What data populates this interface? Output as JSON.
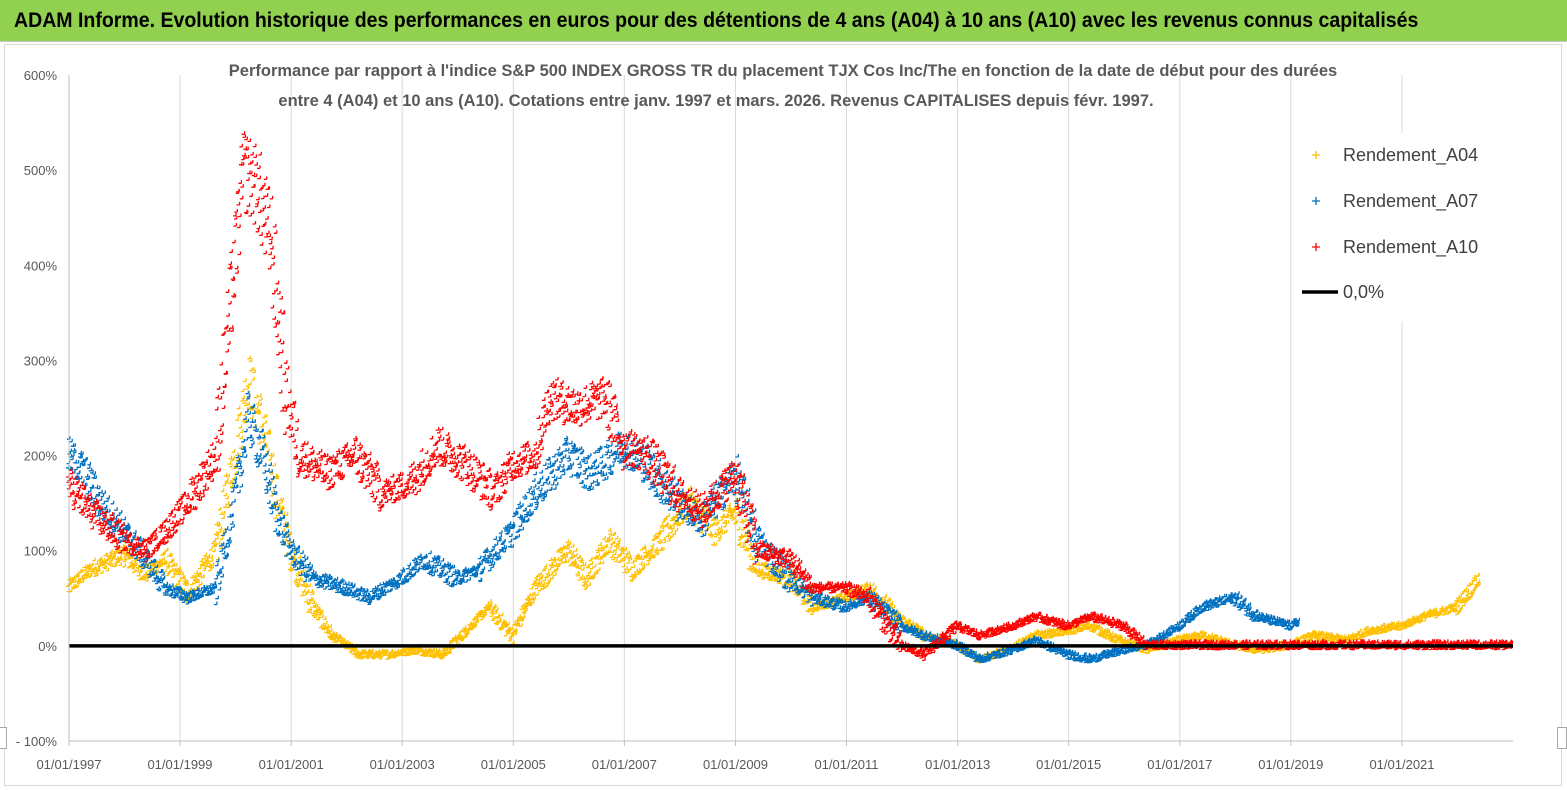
{
  "header": {
    "title": "ADAM Informe. Evolution historique des performances en euros pour des détentions de 4 ans (A04) à 10 ans (A10) avec les revenus connus capitalisés"
  },
  "chart_data": {
    "type": "scatter",
    "title_line1": "Performance par rapport à l'indice S&P 500 INDEX GROSS TR  du placement TJX Cos Inc/The en fonction de la date de début pour des durées",
    "title_line2": "entre 4 (A04) et 10 ans (A10). Cotations entre janv. 1997 et mars. 2026. Revenus CAPITALISES depuis févr. 1997.",
    "xlabel": "",
    "ylabel": "",
    "x_ticks": [
      "01/01/1997",
      "01/01/1999",
      "01/01/2001",
      "01/01/2003",
      "01/01/2005",
      "01/01/2007",
      "01/01/2009",
      "01/01/2011",
      "01/01/2013",
      "01/01/2015",
      "01/01/2017",
      "01/01/2019",
      "01/01/2021"
    ],
    "y_ticks": [
      "600%",
      "500%",
      "400%",
      "300%",
      "200%",
      "100%",
      "0%",
      "- 100%"
    ],
    "ylim": [
      -100,
      600
    ],
    "xlim": [
      "1997-01-01",
      "2023-01-01"
    ],
    "grid": "vertical",
    "legend_position": "top-right",
    "series": [
      {
        "name": "Rendement_A04",
        "color": "#ffc000",
        "marker": "plus",
        "points": [
          [
            "1997-01-01",
            60
          ],
          [
            "1997-06-01",
            80
          ],
          [
            "1998-01-01",
            95
          ],
          [
            "1998-06-01",
            75
          ],
          [
            "1998-10-01",
            90
          ],
          [
            "1999-03-01",
            55
          ],
          [
            "1999-09-01",
            100
          ],
          [
            "2000-01-01",
            200
          ],
          [
            "2000-04-01",
            280
          ],
          [
            "2000-07-01",
            230
          ],
          [
            "2000-10-01",
            160
          ],
          [
            "2001-01-01",
            100
          ],
          [
            "2001-06-01",
            40
          ],
          [
            "2001-10-01",
            10
          ],
          [
            "2002-04-01",
            -10
          ],
          [
            "2002-10-01",
            -10
          ],
          [
            "2003-04-01",
            -5
          ],
          [
            "2003-10-01",
            -10
          ],
          [
            "2004-04-01",
            20
          ],
          [
            "2004-08-01",
            40
          ],
          [
            "2005-01-01",
            10
          ],
          [
            "2005-06-01",
            60
          ],
          [
            "2006-01-01",
            100
          ],
          [
            "2006-05-01",
            70
          ],
          [
            "2006-10-01",
            110
          ],
          [
            "2007-03-01",
            80
          ],
          [
            "2007-09-01",
            110
          ],
          [
            "2008-03-01",
            150
          ],
          [
            "2008-09-01",
            120
          ],
          [
            "2009-01-01",
            140
          ],
          [
            "2009-06-01",
            80
          ],
          [
            "2010-01-01",
            70
          ],
          [
            "2010-06-01",
            40
          ],
          [
            "2011-01-01",
            50
          ],
          [
            "2011-06-01",
            60
          ],
          [
            "2011-12-01",
            30
          ],
          [
            "2012-06-01",
            10
          ],
          [
            "2013-01-01",
            0
          ],
          [
            "2013-06-01",
            -15
          ],
          [
            "2013-12-01",
            -5
          ],
          [
            "2014-06-01",
            10
          ],
          [
            "2015-01-01",
            15
          ],
          [
            "2015-06-01",
            20
          ],
          [
            "2015-12-01",
            5
          ],
          [
            "2016-06-01",
            -5
          ],
          [
            "2017-01-01",
            5
          ],
          [
            "2017-06-01",
            10
          ],
          [
            "2018-01-01",
            0
          ],
          [
            "2018-06-01",
            -5
          ],
          [
            "2019-01-01",
            0
          ],
          [
            "2019-06-01",
            10
          ],
          [
            "2020-01-01",
            5
          ],
          [
            "2020-06-01",
            15
          ],
          [
            "2021-01-01",
            20
          ],
          [
            "2021-06-01",
            30
          ],
          [
            "2022-01-01",
            40
          ],
          [
            "2022-06-01",
            70
          ]
        ]
      },
      {
        "name": "Rendement_A07",
        "color": "#0070c0",
        "marker": "plus",
        "points": [
          [
            "1997-01-01",
            200
          ],
          [
            "1997-04-01",
            185
          ],
          [
            "1997-08-01",
            150
          ],
          [
            "1998-01-01",
            120
          ],
          [
            "1998-06-01",
            90
          ],
          [
            "1998-10-01",
            60
          ],
          [
            "1999-03-01",
            50
          ],
          [
            "1999-09-01",
            60
          ],
          [
            "2000-01-01",
            150
          ],
          [
            "2000-04-01",
            240
          ],
          [
            "2000-07-01",
            200
          ],
          [
            "2000-10-01",
            140
          ],
          [
            "2001-01-01",
            100
          ],
          [
            "2001-06-01",
            70
          ],
          [
            "2002-01-01",
            60
          ],
          [
            "2002-06-01",
            50
          ],
          [
            "2003-01-01",
            70
          ],
          [
            "2003-06-01",
            90
          ],
          [
            "2004-01-01",
            70
          ],
          [
            "2004-06-01",
            80
          ],
          [
            "2005-01-01",
            120
          ],
          [
            "2005-06-01",
            160
          ],
          [
            "2006-01-01",
            200
          ],
          [
            "2006-06-01",
            180
          ],
          [
            "2007-01-01",
            210
          ],
          [
            "2007-06-01",
            190
          ],
          [
            "2008-01-01",
            150
          ],
          [
            "2008-06-01",
            130
          ],
          [
            "2009-01-01",
            180
          ],
          [
            "2009-06-01",
            110
          ],
          [
            "2010-01-01",
            70
          ],
          [
            "2010-06-01",
            50
          ],
          [
            "2011-01-01",
            40
          ],
          [
            "2011-06-01",
            50
          ],
          [
            "2012-01-01",
            20
          ],
          [
            "2012-06-01",
            10
          ],
          [
            "2013-01-01",
            0
          ],
          [
            "2013-06-01",
            -15
          ],
          [
            "2014-01-01",
            -5
          ],
          [
            "2014-06-01",
            5
          ],
          [
            "2015-01-01",
            -10
          ],
          [
            "2015-06-01",
            -15
          ],
          [
            "2016-01-01",
            -5
          ],
          [
            "2016-06-01",
            0
          ],
          [
            "2017-01-01",
            20
          ],
          [
            "2017-06-01",
            40
          ],
          [
            "2018-01-01",
            50
          ],
          [
            "2018-06-01",
            30
          ],
          [
            "2019-01-01",
            20
          ],
          [
            "2019-03-01",
            25
          ]
        ]
      },
      {
        "name": "Rendement_A10",
        "color": "#ff0000",
        "marker": "plus",
        "points": [
          [
            "1997-01-01",
            170
          ],
          [
            "1997-06-01",
            140
          ],
          [
            "1998-01-01",
            110
          ],
          [
            "1998-06-01",
            100
          ],
          [
            "1998-10-01",
            120
          ],
          [
            "1999-03-01",
            150
          ],
          [
            "1999-09-01",
            200
          ],
          [
            "2000-01-01",
            400
          ],
          [
            "2000-03-01",
            500
          ],
          [
            "2000-06-01",
            480
          ],
          [
            "2000-09-01",
            420
          ],
          [
            "2000-12-01",
            270
          ],
          [
            "2001-03-01",
            200
          ],
          [
            "2001-09-01",
            180
          ],
          [
            "2002-03-01",
            200
          ],
          [
            "2002-09-01",
            160
          ],
          [
            "2003-03-01",
            170
          ],
          [
            "2003-09-01",
            210
          ],
          [
            "2004-03-01",
            190
          ],
          [
            "2004-09-01",
            160
          ],
          [
            "2005-01-01",
            190
          ],
          [
            "2005-06-01",
            200
          ],
          [
            "2005-09-01",
            260
          ],
          [
            "2006-03-01",
            250
          ],
          [
            "2006-09-01",
            260
          ],
          [
            "2007-01-01",
            210
          ],
          [
            "2007-06-01",
            200
          ],
          [
            "2008-01-01",
            160
          ],
          [
            "2008-06-01",
            140
          ],
          [
            "2009-01-01",
            180
          ],
          [
            "2009-06-01",
            100
          ],
          [
            "2010-01-01",
            90
          ],
          [
            "2010-06-01",
            60
          ],
          [
            "2011-01-01",
            60
          ],
          [
            "2011-06-01",
            50
          ],
          [
            "2012-01-01",
            0
          ],
          [
            "2012-06-01",
            -10
          ],
          [
            "2013-01-01",
            20
          ],
          [
            "2013-06-01",
            10
          ],
          [
            "2014-01-01",
            20
          ],
          [
            "2014-06-01",
            30
          ],
          [
            "2015-01-01",
            20
          ],
          [
            "2015-06-01",
            30
          ],
          [
            "2016-01-01",
            20
          ],
          [
            "2016-06-01",
            0
          ],
          [
            "2017-01-01",
            0
          ],
          [
            "2018-01-01",
            0
          ],
          [
            "2019-01-01",
            0
          ],
          [
            "2020-01-01",
            0
          ],
          [
            "2021-01-01",
            0
          ],
          [
            "2022-01-01",
            0
          ],
          [
            "2023-01-01",
            0
          ]
        ]
      },
      {
        "name": "0,0%",
        "color": "#000000",
        "marker": "line",
        "points": [
          [
            "1997-01-01",
            0
          ],
          [
            "2023-01-01",
            0
          ]
        ]
      }
    ]
  }
}
